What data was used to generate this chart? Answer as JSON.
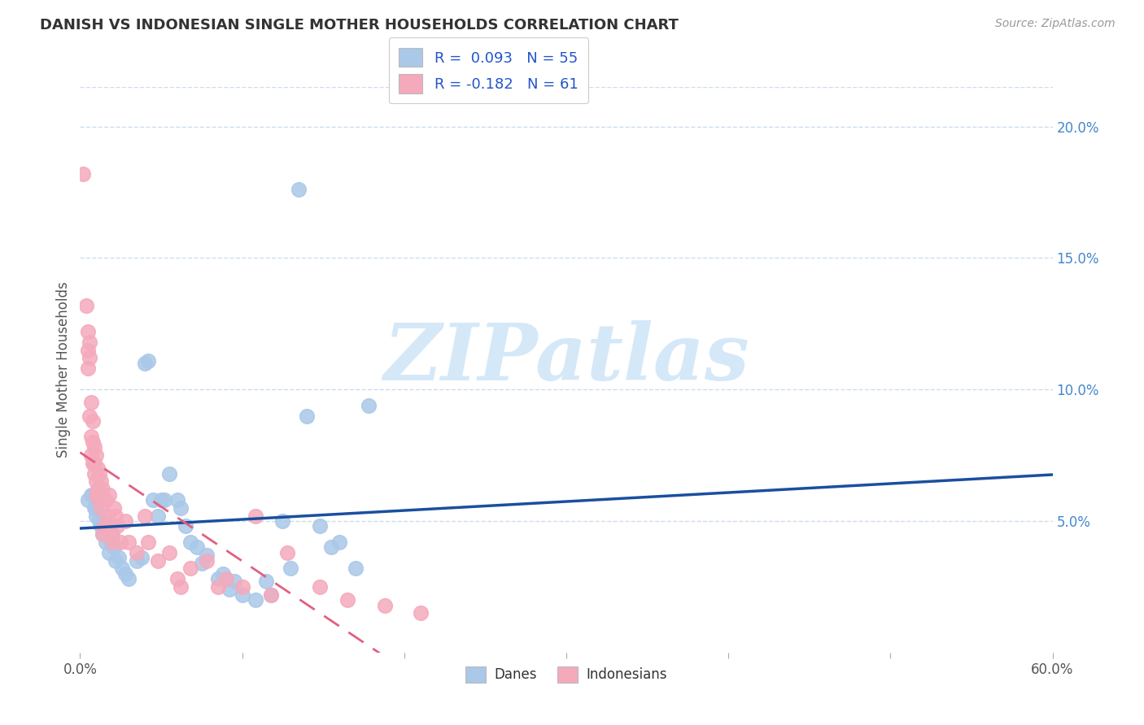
{
  "title": "DANISH VS INDONESIAN SINGLE MOTHER HOUSEHOLDS CORRELATION CHART",
  "source": "Source: ZipAtlas.com",
  "ylabel": "Single Mother Households",
  "xlim": [
    0.0,
    0.6
  ],
  "ylim": [
    0.0,
    0.215
  ],
  "xticks": [
    0.0,
    0.1,
    0.2,
    0.3,
    0.4,
    0.5,
    0.6
  ],
  "xtick_labels": [
    "0.0%",
    "",
    "",
    "",
    "",
    "",
    "60.0%"
  ],
  "yticks_right": [
    0.05,
    0.1,
    0.15,
    0.2
  ],
  "ytick_labels_right": [
    "5.0%",
    "10.0%",
    "15.0%",
    "20.0%"
  ],
  "blue_color": "#aac8e8",
  "pink_color": "#f4aabb",
  "blue_line_color": "#1a4fa0",
  "pink_line_color": "#e06080",
  "watermark": "ZIPatlas",
  "watermark_color": "#d5e8f8",
  "danes_label": "Danes",
  "indonesians_label": "Indonesians",
  "danes_points": [
    [
      0.005,
      0.058
    ],
    [
      0.007,
      0.06
    ],
    [
      0.008,
      0.06
    ],
    [
      0.009,
      0.055
    ],
    [
      0.01,
      0.055
    ],
    [
      0.01,
      0.052
    ],
    [
      0.011,
      0.058
    ],
    [
      0.012,
      0.05
    ],
    [
      0.013,
      0.048
    ],
    [
      0.014,
      0.045
    ],
    [
      0.015,
      0.05
    ],
    [
      0.016,
      0.042
    ],
    [
      0.017,
      0.048
    ],
    [
      0.018,
      0.038
    ],
    [
      0.019,
      0.042
    ],
    [
      0.02,
      0.045
    ],
    [
      0.021,
      0.04
    ],
    [
      0.022,
      0.035
    ],
    [
      0.024,
      0.036
    ],
    [
      0.026,
      0.032
    ],
    [
      0.028,
      0.03
    ],
    [
      0.03,
      0.028
    ],
    [
      0.035,
      0.035
    ],
    [
      0.038,
      0.036
    ],
    [
      0.04,
      0.11
    ],
    [
      0.042,
      0.111
    ],
    [
      0.045,
      0.058
    ],
    [
      0.048,
      0.052
    ],
    [
      0.05,
      0.058
    ],
    [
      0.052,
      0.058
    ],
    [
      0.055,
      0.068
    ],
    [
      0.06,
      0.058
    ],
    [
      0.062,
      0.055
    ],
    [
      0.065,
      0.048
    ],
    [
      0.068,
      0.042
    ],
    [
      0.072,
      0.04
    ],
    [
      0.075,
      0.034
    ],
    [
      0.078,
      0.037
    ],
    [
      0.085,
      0.028
    ],
    [
      0.088,
      0.03
    ],
    [
      0.092,
      0.024
    ],
    [
      0.095,
      0.027
    ],
    [
      0.1,
      0.022
    ],
    [
      0.108,
      0.02
    ],
    [
      0.115,
      0.027
    ],
    [
      0.118,
      0.022
    ],
    [
      0.125,
      0.05
    ],
    [
      0.13,
      0.032
    ],
    [
      0.135,
      0.176
    ],
    [
      0.14,
      0.09
    ],
    [
      0.148,
      0.048
    ],
    [
      0.155,
      0.04
    ],
    [
      0.16,
      0.042
    ],
    [
      0.17,
      0.032
    ],
    [
      0.178,
      0.094
    ]
  ],
  "indonesians_points": [
    [
      0.002,
      0.182
    ],
    [
      0.004,
      0.132
    ],
    [
      0.005,
      0.122
    ],
    [
      0.005,
      0.115
    ],
    [
      0.005,
      0.108
    ],
    [
      0.006,
      0.118
    ],
    [
      0.006,
      0.112
    ],
    [
      0.006,
      0.09
    ],
    [
      0.007,
      0.095
    ],
    [
      0.007,
      0.082
    ],
    [
      0.007,
      0.075
    ],
    [
      0.008,
      0.088
    ],
    [
      0.008,
      0.08
    ],
    [
      0.008,
      0.072
    ],
    [
      0.009,
      0.078
    ],
    [
      0.009,
      0.072
    ],
    [
      0.009,
      0.068
    ],
    [
      0.01,
      0.075
    ],
    [
      0.01,
      0.065
    ],
    [
      0.01,
      0.06
    ],
    [
      0.011,
      0.07
    ],
    [
      0.011,
      0.062
    ],
    [
      0.012,
      0.068
    ],
    [
      0.012,
      0.06
    ],
    [
      0.012,
      0.058
    ],
    [
      0.013,
      0.065
    ],
    [
      0.013,
      0.055
    ],
    [
      0.014,
      0.062
    ],
    [
      0.014,
      0.045
    ],
    [
      0.015,
      0.048
    ],
    [
      0.016,
      0.058
    ],
    [
      0.017,
      0.052
    ],
    [
      0.018,
      0.06
    ],
    [
      0.018,
      0.048
    ],
    [
      0.019,
      0.045
    ],
    [
      0.02,
      0.042
    ],
    [
      0.021,
      0.055
    ],
    [
      0.022,
      0.052
    ],
    [
      0.023,
      0.048
    ],
    [
      0.025,
      0.042
    ],
    [
      0.028,
      0.05
    ],
    [
      0.03,
      0.042
    ],
    [
      0.035,
      0.038
    ],
    [
      0.04,
      0.052
    ],
    [
      0.042,
      0.042
    ],
    [
      0.048,
      0.035
    ],
    [
      0.055,
      0.038
    ],
    [
      0.06,
      0.028
    ],
    [
      0.062,
      0.025
    ],
    [
      0.068,
      0.032
    ],
    [
      0.078,
      0.035
    ],
    [
      0.085,
      0.025
    ],
    [
      0.09,
      0.028
    ],
    [
      0.1,
      0.025
    ],
    [
      0.108,
      0.052
    ],
    [
      0.118,
      0.022
    ],
    [
      0.128,
      0.038
    ],
    [
      0.148,
      0.025
    ],
    [
      0.165,
      0.02
    ],
    [
      0.188,
      0.018
    ],
    [
      0.21,
      0.015
    ]
  ]
}
